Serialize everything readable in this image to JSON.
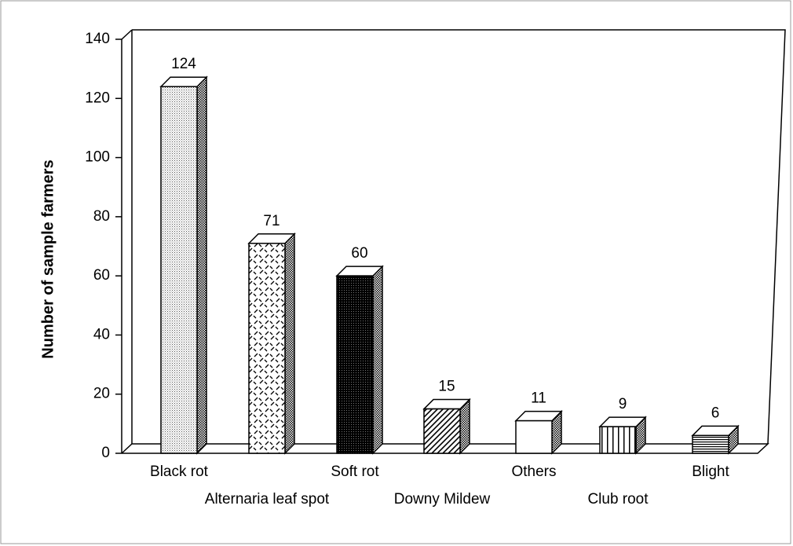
{
  "chart_data": {
    "type": "bar3d",
    "ylabel": "Number of sample farmers",
    "categories": [
      "Black rot",
      "Alternaria leaf spot",
      "Soft rot",
      "Downy Mildew",
      "Others",
      "Club root",
      "Blight"
    ],
    "values": [
      124,
      71,
      60,
      15,
      11,
      9,
      6
    ],
    "ylim": [
      0,
      140
    ],
    "yticks": [
      0,
      20,
      40,
      60,
      80,
      100,
      120,
      140
    ]
  }
}
